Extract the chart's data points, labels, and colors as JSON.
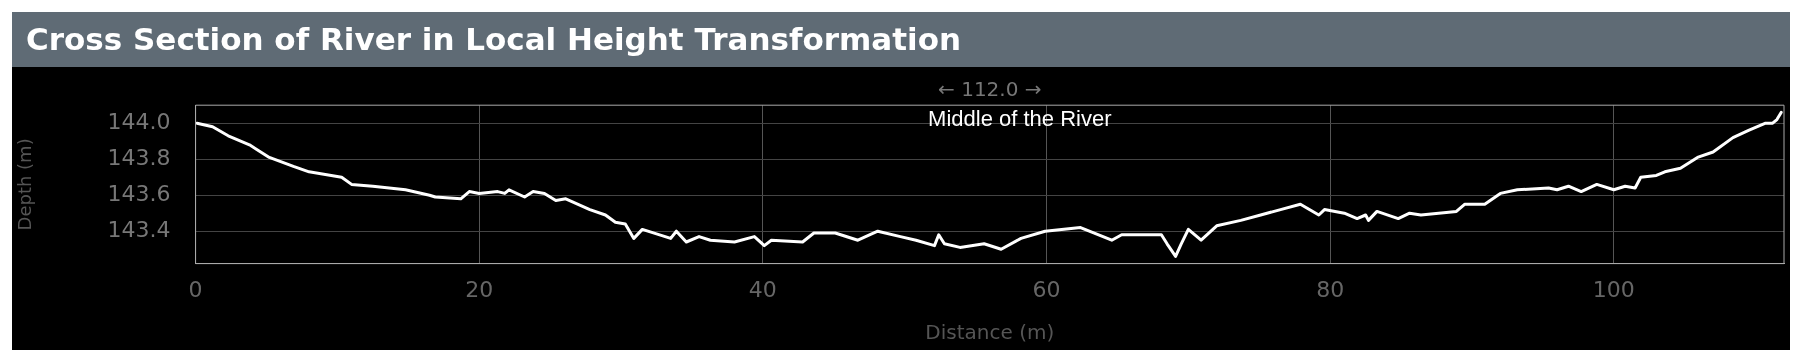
{
  "chart_data": {
    "type": "line",
    "title": "Cross Section of River in Local Height Transformation",
    "xlabel": "Distance (m)",
    "ylabel": "Depth (m)",
    "annotations": [
      "← 112.0 →",
      "Middle of the River"
    ],
    "xlim": [
      0,
      112
    ],
    "xticks": [
      0,
      20,
      40,
      60,
      80,
      100
    ],
    "ylim": [
      143.22,
      144.1
    ],
    "yticks": [
      {
        "value": 143.4,
        "label": "143.4"
      },
      {
        "value": 143.6,
        "label": "143.6"
      },
      {
        "value": 143.8,
        "label": "143.8"
      },
      {
        "value": 144.0,
        "label": "144.0"
      }
    ],
    "grid": true,
    "legend": false,
    "marker": "none",
    "line_style": "solid",
    "series": [
      {
        "color": "#ffffff",
        "x": [
          0.1,
          1.2,
          2.3,
          3.8,
          5.2,
          6.9,
          8.0,
          10.3,
          11.0,
          12.5,
          14.8,
          16.5,
          16.9,
          18.7,
          19.3,
          20.0,
          21.3,
          21.8,
          22.1,
          23.2,
          23.8,
          24.6,
          25.4,
          26.1,
          27.8,
          28.9,
          29.6,
          30.3,
          30.9,
          31.5,
          33.5,
          33.9,
          34.6,
          35.5,
          36.3,
          38.0,
          39.4,
          40.1,
          40.6,
          42.8,
          43.6,
          45.1,
          46.7,
          48.1,
          49.7,
          50.8,
          52.1,
          52.4,
          52.8,
          53.9,
          55.6,
          56.8,
          58.2,
          59.9,
          62.4,
          64.6,
          65.3,
          68.1,
          68.5,
          69.1,
          69.5,
          70.0,
          70.9,
          72.0,
          73.7,
          75.1,
          76.5,
          77.9,
          79.2,
          79.6,
          81.0,
          81.9,
          82.5,
          82.7,
          83.3,
          84.8,
          85.6,
          86.4,
          88.9,
          89.5,
          90.9,
          92.0,
          93.2,
          95.4,
          96.0,
          96.8,
          97.7,
          98.8,
          100.0,
          100.8,
          101.5,
          101.9,
          103.0,
          103.6,
          104.7,
          105.9,
          107.0,
          108.4,
          109.5,
          110.7,
          111.2,
          111.5,
          111.8
        ],
        "values": [
          144.0,
          143.98,
          143.93,
          143.88,
          143.81,
          143.76,
          143.73,
          143.7,
          143.66,
          143.65,
          143.63,
          143.6,
          143.59,
          143.58,
          143.62,
          143.61,
          143.62,
          143.61,
          143.63,
          143.59,
          143.62,
          143.61,
          143.57,
          143.58,
          143.52,
          143.49,
          143.45,
          143.44,
          143.36,
          143.41,
          143.36,
          143.4,
          143.34,
          143.37,
          143.35,
          143.34,
          143.37,
          143.32,
          143.35,
          143.34,
          143.39,
          143.39,
          143.35,
          143.4,
          143.37,
          143.35,
          143.32,
          143.38,
          143.33,
          143.31,
          143.33,
          143.3,
          143.36,
          143.4,
          143.42,
          143.35,
          143.38,
          143.38,
          143.33,
          143.26,
          143.33,
          143.41,
          143.35,
          143.43,
          143.46,
          143.49,
          143.52,
          143.55,
          143.49,
          143.52,
          143.5,
          143.47,
          143.49,
          143.46,
          143.51,
          143.47,
          143.5,
          143.49,
          143.51,
          143.55,
          143.55,
          143.61,
          143.63,
          143.64,
          143.63,
          143.65,
          143.62,
          143.66,
          143.63,
          143.65,
          143.64,
          143.7,
          143.71,
          143.73,
          143.75,
          143.81,
          143.84,
          143.92,
          143.96,
          144.0,
          144.0,
          144.02,
          144.06
        ]
      }
    ]
  }
}
